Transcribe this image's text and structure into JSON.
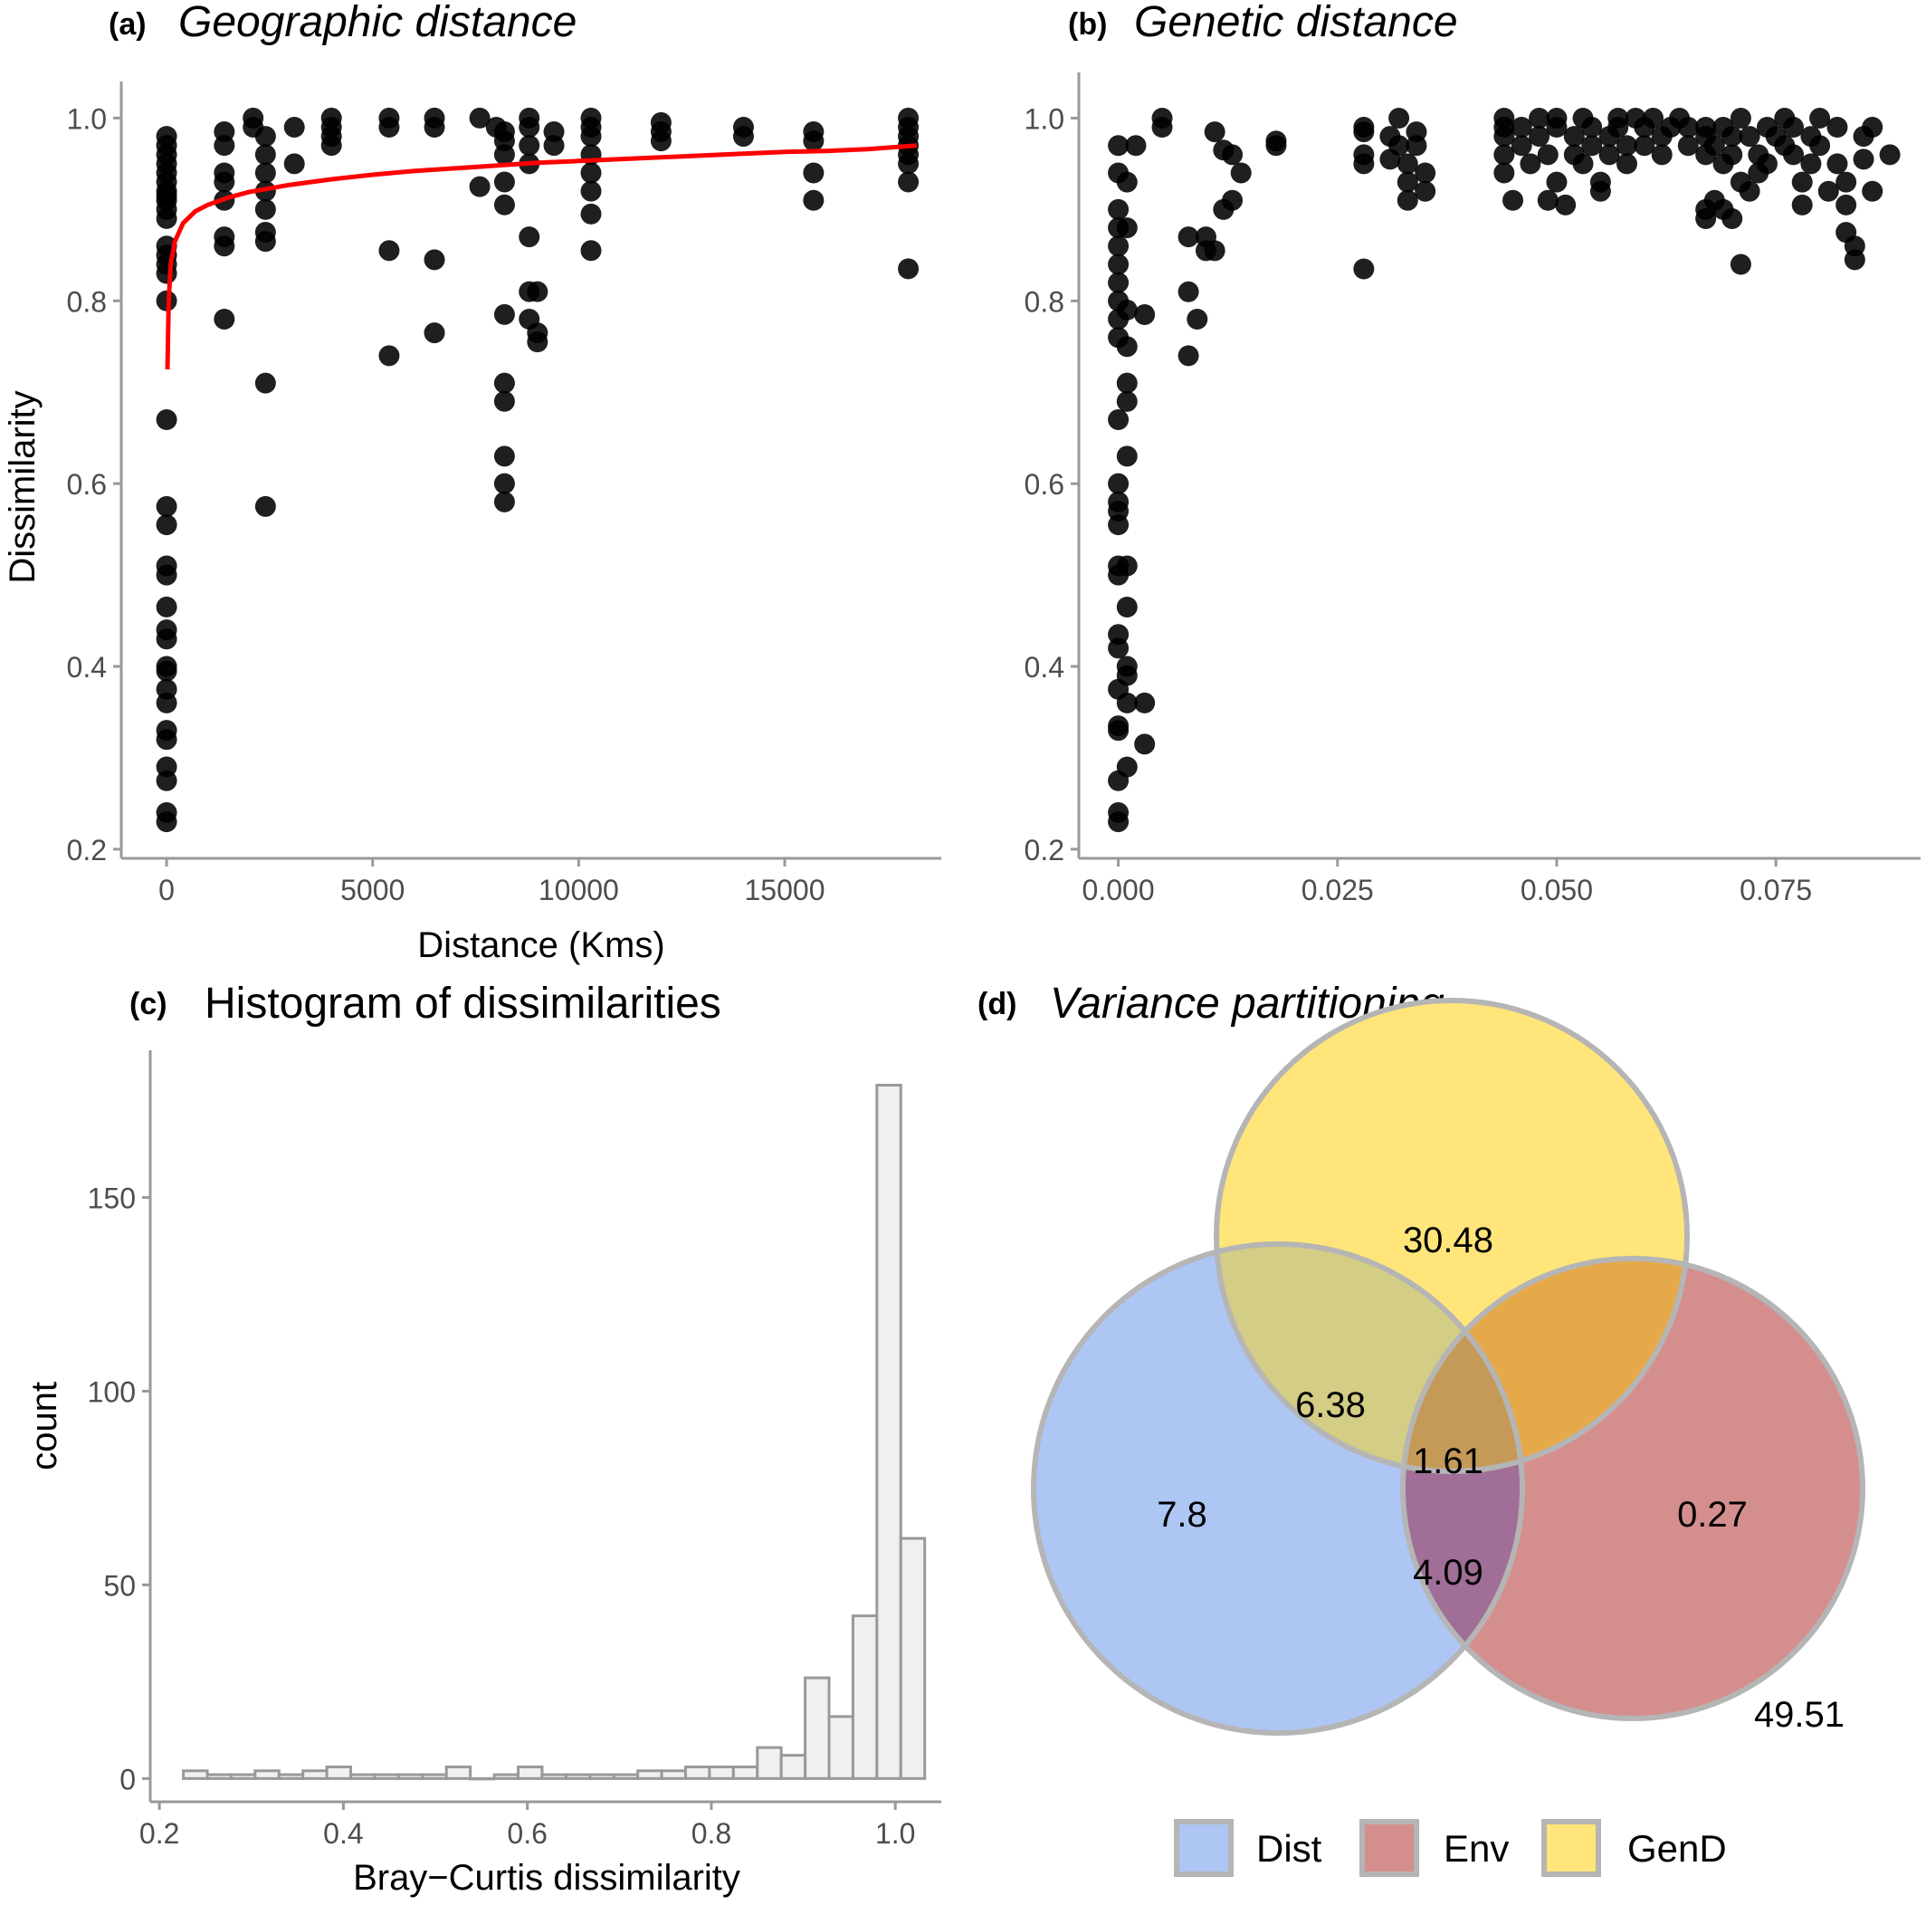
{
  "chart_data": [
    {
      "type": "scatter",
      "panel": "(a)",
      "title": "Geographic distance",
      "xlabel": "Distance (Kms)",
      "ylabel": "Dissimilarity",
      "xlim": [
        -1100,
        18800
      ],
      "ylim": [
        0.19,
        1.04
      ],
      "xticks": [
        0,
        5000,
        10000,
        15000
      ],
      "xtick_labels": [
        "0",
        "5000",
        "10000",
        "15000"
      ],
      "yticks": [
        0.2,
        0.4,
        0.6,
        0.8,
        1.0
      ],
      "ytick_labels": [
        "0.2",
        "0.4",
        "0.6",
        "0.8",
        "1.0"
      ],
      "grid": false,
      "point_color": "#000000",
      "fit_color": "#ff0000",
      "fit_line": {
        "x": [
          20,
          50,
          100,
          200,
          400,
          700,
          1000,
          1500,
          2000,
          3000,
          4000,
          5000,
          6000,
          7000,
          8000,
          9000,
          10000,
          11000,
          12000,
          13000,
          14000,
          15000,
          16000,
          17000,
          18200
        ],
        "y": [
          0.725,
          0.8,
          0.84,
          0.865,
          0.885,
          0.898,
          0.905,
          0.913,
          0.919,
          0.927,
          0.933,
          0.938,
          0.942,
          0.945,
          0.948,
          0.951,
          0.953,
          0.955,
          0.957,
          0.959,
          0.961,
          0.963,
          0.964,
          0.966,
          0.97
        ]
      },
      "points": [
        [
          0,
          0.98
        ],
        [
          0,
          0.97
        ],
        [
          0,
          0.96
        ],
        [
          0,
          0.95
        ],
        [
          0,
          0.94
        ],
        [
          0,
          0.93
        ],
        [
          0,
          0.92
        ],
        [
          0,
          0.915
        ],
        [
          0,
          0.91
        ],
        [
          0,
          0.9
        ],
        [
          0,
          0.89
        ],
        [
          0,
          0.86
        ],
        [
          0,
          0.85
        ],
        [
          0,
          0.84
        ],
        [
          0,
          0.83
        ],
        [
          0,
          0.8
        ],
        [
          0,
          0.67
        ],
        [
          0,
          0.575
        ],
        [
          0,
          0.555
        ],
        [
          0,
          0.51
        ],
        [
          0,
          0.5
        ],
        [
          0,
          0.465
        ],
        [
          0,
          0.44
        ],
        [
          0,
          0.43
        ],
        [
          0,
          0.4
        ],
        [
          0,
          0.395
        ],
        [
          0,
          0.375
        ],
        [
          0,
          0.36
        ],
        [
          0,
          0.33
        ],
        [
          0,
          0.32
        ],
        [
          0,
          0.29
        ],
        [
          0,
          0.275
        ],
        [
          0,
          0.24
        ],
        [
          0,
          0.23
        ],
        [
          1400,
          0.985
        ],
        [
          1400,
          0.97
        ],
        [
          1400,
          0.94
        ],
        [
          1400,
          0.93
        ],
        [
          1400,
          0.91
        ],
        [
          1400,
          0.87
        ],
        [
          1400,
          0.86
        ],
        [
          1400,
          0.78
        ],
        [
          2100,
          1.0
        ],
        [
          2100,
          0.99
        ],
        [
          2400,
          0.98
        ],
        [
          2400,
          0.96
        ],
        [
          2400,
          0.94
        ],
        [
          2400,
          0.92
        ],
        [
          2400,
          0.9
        ],
        [
          2400,
          0.875
        ],
        [
          2400,
          0.865
        ],
        [
          2400,
          0.71
        ],
        [
          2400,
          0.575
        ],
        [
          3100,
          0.99
        ],
        [
          3100,
          0.95
        ],
        [
          4000,
          1.0
        ],
        [
          4000,
          0.99
        ],
        [
          4000,
          0.98
        ],
        [
          4000,
          0.97
        ],
        [
          5400,
          1.0
        ],
        [
          5400,
          0.99
        ],
        [
          5400,
          0.855
        ],
        [
          5400,
          0.74
        ],
        [
          6500,
          1.0
        ],
        [
          6500,
          0.99
        ],
        [
          6500,
          0.845
        ],
        [
          6500,
          0.765
        ],
        [
          7600,
          1.0
        ],
        [
          7600,
          0.925
        ],
        [
          8000,
          0.99
        ],
        [
          8200,
          0.985
        ],
        [
          8200,
          0.975
        ],
        [
          8200,
          0.96
        ],
        [
          8200,
          0.93
        ],
        [
          8200,
          0.905
        ],
        [
          8200,
          0.785
        ],
        [
          8200,
          0.71
        ],
        [
          8200,
          0.69
        ],
        [
          8200,
          0.63
        ],
        [
          8200,
          0.6
        ],
        [
          8200,
          0.58
        ],
        [
          8800,
          1.0
        ],
        [
          8800,
          0.99
        ],
        [
          8800,
          0.97
        ],
        [
          8800,
          0.95
        ],
        [
          8800,
          0.87
        ],
        [
          8800,
          0.81
        ],
        [
          8800,
          0.78
        ],
        [
          9000,
          0.81
        ],
        [
          9000,
          0.765
        ],
        [
          9000,
          0.755
        ],
        [
          9400,
          0.985
        ],
        [
          9400,
          0.97
        ],
        [
          10300,
          1.0
        ],
        [
          10300,
          0.99
        ],
        [
          10300,
          0.98
        ],
        [
          10300,
          0.96
        ],
        [
          10300,
          0.94
        ],
        [
          10300,
          0.92
        ],
        [
          10300,
          0.895
        ],
        [
          10300,
          0.855
        ],
        [
          12000,
          0.995
        ],
        [
          12000,
          0.985
        ],
        [
          12000,
          0.975
        ],
        [
          14000,
          0.99
        ],
        [
          14000,
          0.98
        ],
        [
          15700,
          0.985
        ],
        [
          15700,
          0.975
        ],
        [
          15700,
          0.94
        ],
        [
          15700,
          0.91
        ],
        [
          18000,
          1.0
        ],
        [
          18000,
          0.99
        ],
        [
          18000,
          0.98
        ],
        [
          18000,
          0.97
        ],
        [
          18000,
          0.96
        ],
        [
          18000,
          0.95
        ],
        [
          18000,
          0.93
        ],
        [
          18000,
          0.835
        ]
      ]
    },
    {
      "type": "scatter",
      "panel": "(b)",
      "title": "Genetic distance",
      "xlabel": "",
      "ylabel": "",
      "xlim": [
        -0.0045,
        0.0915
      ],
      "ylim": [
        0.19,
        1.05
      ],
      "xticks": [
        0.0,
        0.025,
        0.05,
        0.075
      ],
      "xtick_labels": [
        "0.000",
        "0.025",
        "0.050",
        "0.075"
      ],
      "yticks": [
        0.2,
        0.4,
        0.6,
        0.8,
        1.0
      ],
      "ytick_labels": [
        "0.2",
        "0.4",
        "0.6",
        "0.8",
        "1.0"
      ],
      "grid": false,
      "point_color": "#000000",
      "points": [
        [
          0.0,
          0.97
        ],
        [
          0.0,
          0.94
        ],
        [
          0.0,
          0.9
        ],
        [
          0.0,
          0.88
        ],
        [
          0.0,
          0.86
        ],
        [
          0.0,
          0.84
        ],
        [
          0.0,
          0.82
        ],
        [
          0.0,
          0.8
        ],
        [
          0.0,
          0.78
        ],
        [
          0.0,
          0.76
        ],
        [
          0.0,
          0.67
        ],
        [
          0.0,
          0.6
        ],
        [
          0.0,
          0.58
        ],
        [
          0.0,
          0.57
        ],
        [
          0.0,
          0.555
        ],
        [
          0.0,
          0.51
        ],
        [
          0.0,
          0.5
        ],
        [
          0.0,
          0.435
        ],
        [
          0.0,
          0.42
        ],
        [
          0.0,
          0.375
        ],
        [
          0.0,
          0.335
        ],
        [
          0.0,
          0.33
        ],
        [
          0.0,
          0.275
        ],
        [
          0.0,
          0.24
        ],
        [
          0.0,
          0.23
        ],
        [
          0.001,
          0.93
        ],
        [
          0.001,
          0.88
        ],
        [
          0.001,
          0.79
        ],
        [
          0.001,
          0.75
        ],
        [
          0.001,
          0.71
        ],
        [
          0.001,
          0.69
        ],
        [
          0.001,
          0.63
        ],
        [
          0.001,
          0.51
        ],
        [
          0.001,
          0.465
        ],
        [
          0.001,
          0.4
        ],
        [
          0.001,
          0.39
        ],
        [
          0.001,
          0.36
        ],
        [
          0.001,
          0.29
        ],
        [
          0.002,
          0.97
        ],
        [
          0.003,
          0.785
        ],
        [
          0.003,
          0.36
        ],
        [
          0.003,
          0.315
        ],
        [
          0.005,
          1.0
        ],
        [
          0.005,
          0.99
        ],
        [
          0.008,
          0.87
        ],
        [
          0.008,
          0.81
        ],
        [
          0.008,
          0.74
        ],
        [
          0.009,
          0.78
        ],
        [
          0.01,
          0.87
        ],
        [
          0.01,
          0.855
        ],
        [
          0.011,
          0.855
        ],
        [
          0.011,
          0.985
        ],
        [
          0.012,
          0.965
        ],
        [
          0.012,
          0.9
        ],
        [
          0.013,
          0.91
        ],
        [
          0.013,
          0.96
        ],
        [
          0.014,
          0.94
        ],
        [
          0.018,
          0.975
        ],
        [
          0.018,
          0.97
        ],
        [
          0.028,
          0.99
        ],
        [
          0.028,
          0.985
        ],
        [
          0.028,
          0.96
        ],
        [
          0.028,
          0.95
        ],
        [
          0.028,
          0.835
        ],
        [
          0.031,
          0.98
        ],
        [
          0.031,
          0.955
        ],
        [
          0.032,
          1.0
        ],
        [
          0.032,
          0.97
        ],
        [
          0.033,
          0.95
        ],
        [
          0.033,
          0.93
        ],
        [
          0.033,
          0.91
        ],
        [
          0.034,
          0.985
        ],
        [
          0.034,
          0.97
        ],
        [
          0.035,
          0.94
        ],
        [
          0.035,
          0.92
        ],
        [
          0.044,
          1.0
        ],
        [
          0.044,
          0.99
        ],
        [
          0.044,
          0.98
        ],
        [
          0.044,
          0.96
        ],
        [
          0.044,
          0.94
        ],
        [
          0.045,
          0.91
        ],
        [
          0.046,
          0.99
        ],
        [
          0.046,
          0.97
        ],
        [
          0.047,
          0.95
        ],
        [
          0.048,
          1.0
        ],
        [
          0.048,
          0.98
        ],
        [
          0.049,
          0.96
        ],
        [
          0.049,
          0.91
        ],
        [
          0.05,
          1.0
        ],
        [
          0.05,
          0.99
        ],
        [
          0.05,
          0.93
        ],
        [
          0.051,
          0.905
        ],
        [
          0.052,
          0.98
        ],
        [
          0.052,
          0.96
        ],
        [
          0.053,
          1.0
        ],
        [
          0.053,
          0.95
        ],
        [
          0.054,
          0.99
        ],
        [
          0.054,
          0.97
        ],
        [
          0.055,
          0.93
        ],
        [
          0.055,
          0.92
        ],
        [
          0.056,
          0.98
        ],
        [
          0.056,
          0.96
        ],
        [
          0.057,
          1.0
        ],
        [
          0.057,
          0.99
        ],
        [
          0.058,
          0.97
        ],
        [
          0.058,
          0.95
        ],
        [
          0.059,
          1.0
        ],
        [
          0.06,
          0.99
        ],
        [
          0.06,
          0.97
        ],
        [
          0.061,
          1.0
        ],
        [
          0.062,
          0.98
        ],
        [
          0.062,
          0.96
        ],
        [
          0.063,
          0.99
        ],
        [
          0.064,
          1.0
        ],
        [
          0.065,
          0.99
        ],
        [
          0.065,
          0.97
        ],
        [
          0.067,
          0.99
        ],
        [
          0.067,
          0.98
        ],
        [
          0.067,
          0.96
        ],
        [
          0.067,
          0.9
        ],
        [
          0.067,
          0.89
        ],
        [
          0.068,
          0.97
        ],
        [
          0.068,
          0.91
        ],
        [
          0.069,
          0.99
        ],
        [
          0.069,
          0.95
        ],
        [
          0.069,
          0.9
        ],
        [
          0.07,
          0.98
        ],
        [
          0.07,
          0.96
        ],
        [
          0.07,
          0.89
        ],
        [
          0.071,
          1.0
        ],
        [
          0.071,
          0.93
        ],
        [
          0.071,
          0.84
        ],
        [
          0.072,
          0.98
        ],
        [
          0.072,
          0.92
        ],
        [
          0.073,
          0.96
        ],
        [
          0.073,
          0.94
        ],
        [
          0.074,
          0.99
        ],
        [
          0.074,
          0.95
        ],
        [
          0.075,
          0.98
        ],
        [
          0.076,
          1.0
        ],
        [
          0.076,
          0.97
        ],
        [
          0.077,
          0.99
        ],
        [
          0.077,
          0.96
        ],
        [
          0.078,
          0.93
        ],
        [
          0.078,
          0.905
        ],
        [
          0.079,
          0.98
        ],
        [
          0.079,
          0.95
        ],
        [
          0.08,
          1.0
        ],
        [
          0.08,
          0.97
        ],
        [
          0.081,
          0.92
        ],
        [
          0.082,
          0.99
        ],
        [
          0.082,
          0.95
        ],
        [
          0.083,
          0.93
        ],
        [
          0.083,
          0.905
        ],
        [
          0.083,
          0.875
        ],
        [
          0.084,
          0.86
        ],
        [
          0.084,
          0.845
        ],
        [
          0.085,
          0.98
        ],
        [
          0.085,
          0.955
        ],
        [
          0.086,
          0.99
        ],
        [
          0.086,
          0.92
        ],
        [
          0.088,
          0.96
        ]
      ]
    },
    {
      "type": "bar",
      "panel": "(c)",
      "title": "Histogram of dissimilarities",
      "xlabel": "Bray−Curtis dissimilarity",
      "ylabel": "count",
      "xlim": [
        0.19,
        1.05
      ],
      "ylim": [
        -6,
        188
      ],
      "xticks": [
        0.2,
        0.4,
        0.6,
        0.8,
        1.0
      ],
      "xtick_labels": [
        "0.2",
        "0.4",
        "0.6",
        "0.8",
        "1.0"
      ],
      "yticks": [
        0,
        50,
        100,
        150
      ],
      "ytick_labels": [
        "0",
        "50",
        "100",
        "150"
      ],
      "grid": false,
      "bar_fill": "#f0f0f0",
      "bar_stroke": "#999999",
      "bin_width": 0.026,
      "bin_starts": [
        0.226,
        0.252,
        0.278,
        0.304,
        0.33,
        0.356,
        0.382,
        0.408,
        0.434,
        0.46,
        0.486,
        0.512,
        0.538,
        0.564,
        0.59,
        0.616,
        0.642,
        0.668,
        0.694,
        0.72,
        0.746,
        0.772,
        0.798,
        0.824,
        0.85,
        0.876,
        0.902,
        0.928,
        0.954,
        0.98,
        1.006
      ],
      "values": [
        2,
        1,
        1,
        2,
        1,
        2,
        3,
        1,
        1,
        1,
        1,
        3,
        0,
        1,
        3,
        1,
        1,
        1,
        1,
        2,
        2,
        3,
        3,
        3,
        8,
        6,
        26,
        16,
        42,
        179,
        62
      ]
    }
  ],
  "venn": {
    "panel": "(d)",
    "title": "Variance partitioning",
    "colors": {
      "Dist": "#aec6f4",
      "Env": "#d58e8e",
      "GenD": "#ffe57a",
      "outline": "#b5b5b5"
    },
    "labels": {
      "gend_only": "30.48",
      "dist_gend": "6.38",
      "all_three": "1.61",
      "dist_only": "7.8",
      "env_only": "0.27",
      "dist_env": "4.09",
      "residual": "49.51"
    },
    "legend": [
      "Dist",
      "Env",
      "GenD"
    ]
  }
}
